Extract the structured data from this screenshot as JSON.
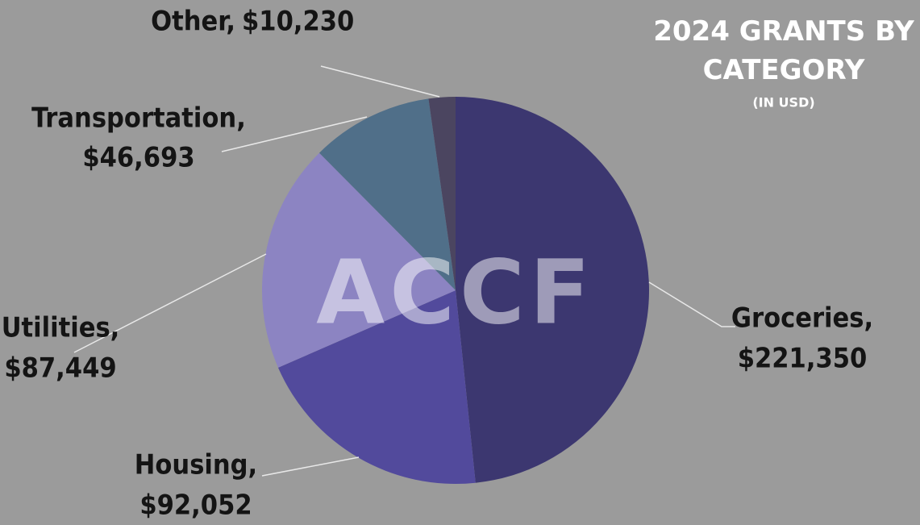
{
  "chart_data": {
    "type": "pie",
    "title": "2024 GRANTS BY CATEGORY",
    "subtitle": "(IN USD)",
    "watermark": "ACCF",
    "categories": [
      "Groceries,",
      "Housing,",
      "Utilities,",
      "Transportation,",
      "Other,"
    ],
    "values": [
      221350,
      92052,
      87449,
      46693,
      10230
    ],
    "value_labels": [
      "$221,350",
      "$92,052",
      "$87,449",
      "$46,693",
      "$10,230"
    ],
    "colors": [
      "#3c3770",
      "#524a9c",
      "#8c84c2",
      "#506f89",
      "#4b4560"
    ]
  }
}
